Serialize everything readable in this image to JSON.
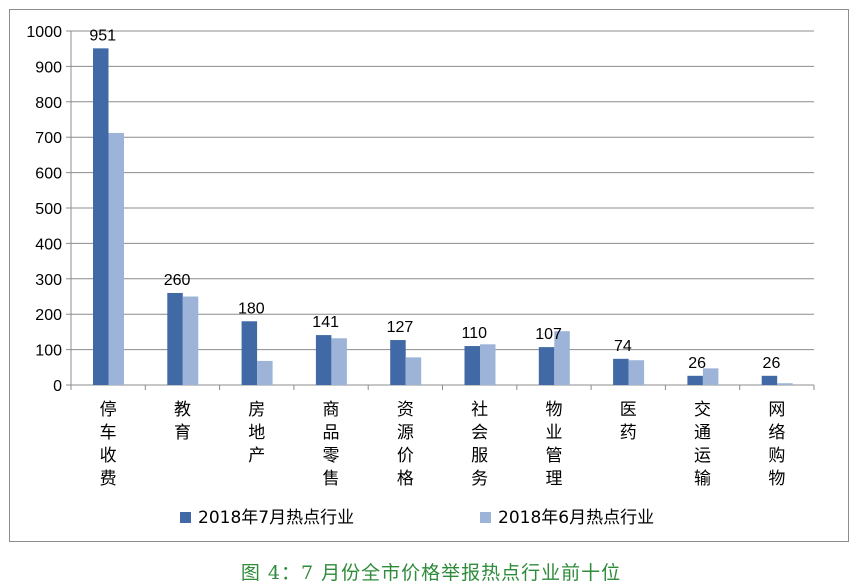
{
  "caption": "图 4：7 月份全市价格举报热点行业前十位",
  "colors": {
    "series_july": "#4169a5",
    "series_june": "#9db4d8",
    "grid": "#8c8c8c",
    "caption": "#2e8b3a"
  },
  "chart_data": {
    "type": "bar",
    "categories": [
      "停车收费",
      "教育",
      "房地产",
      "商品零售",
      "资源价格",
      "社会服务",
      "物业管理",
      "医药",
      "交通运输",
      "网络购物"
    ],
    "series": [
      {
        "name": "2018年7月热点行业",
        "values": [
          951,
          260,
          180,
          141,
          127,
          110,
          107,
          74,
          26,
          26
        ]
      },
      {
        "name": "2018年6月热点行业",
        "values": [
          712,
          250,
          68,
          132,
          78,
          115,
          152,
          70,
          47,
          5
        ]
      }
    ],
    "data_labels": [
      "951",
      "260",
      "180",
      "141",
      "127",
      "110",
      "107",
      "74",
      "26",
      "26"
    ],
    "ylim": [
      0,
      1000
    ],
    "yticks": [
      "0",
      "100",
      "200",
      "300",
      "400",
      "500",
      "600",
      "700",
      "800",
      "900",
      "1000"
    ],
    "grid": true,
    "legend_position": "bottom"
  }
}
